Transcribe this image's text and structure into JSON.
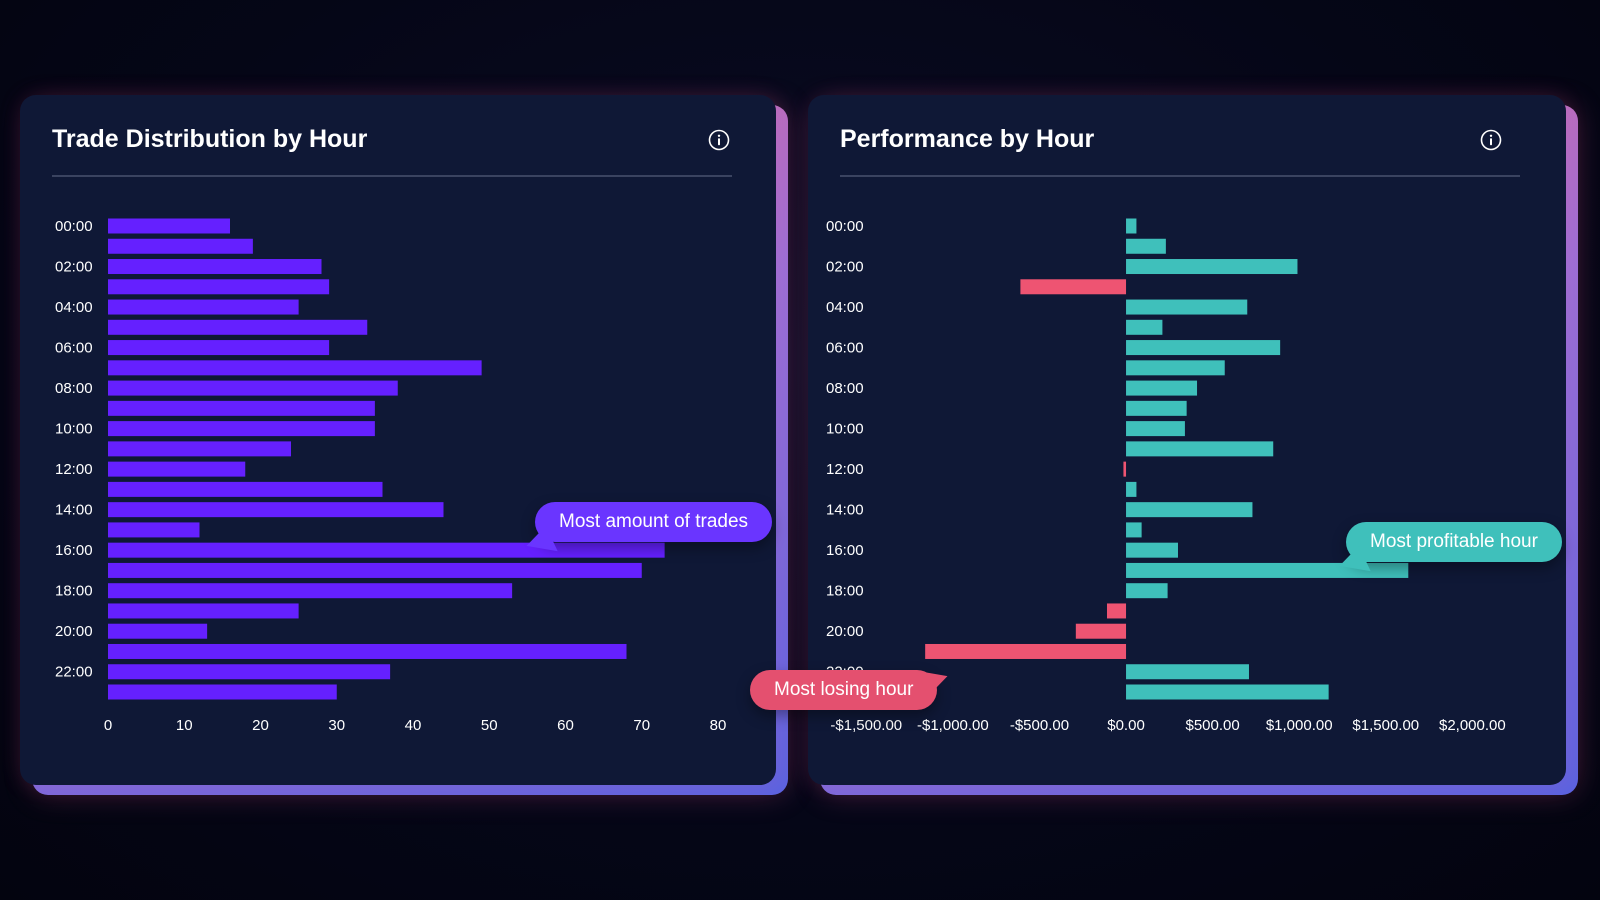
{
  "colors": {
    "trades_bar": "#6520ff",
    "profit_bar": "#3fc0bb",
    "loss_bar": "#ee5472",
    "callout_trades": "#6a35ff",
    "callout_profit": "#3fc0bb",
    "callout_loss": "#e4506f"
  },
  "panels": {
    "left": {
      "title": "Trade Distribution by Hour",
      "info_icon": "info-icon",
      "callout": "Most amount of trades"
    },
    "right": {
      "title": "Performance by Hour",
      "info_icon": "info-icon",
      "callout_profit": "Most profitable hour",
      "callout_loss": "Most losing hour"
    }
  },
  "chart_data": [
    {
      "type": "bar",
      "orientation": "horizontal",
      "title": "Trade Distribution by Hour",
      "categories": [
        "00:00",
        "01:00",
        "02:00",
        "03:00",
        "04:00",
        "05:00",
        "06:00",
        "07:00",
        "08:00",
        "09:00",
        "10:00",
        "11:00",
        "12:00",
        "13:00",
        "14:00",
        "15:00",
        "16:00",
        "17:00",
        "18:00",
        "19:00",
        "20:00",
        "21:00",
        "22:00",
        "23:00"
      ],
      "category_tick_labels": [
        "00:00",
        "",
        "02:00",
        "",
        "04:00",
        "",
        "06:00",
        "",
        "08:00",
        "",
        "10:00",
        "",
        "12:00",
        "",
        "14:00",
        "",
        "16:00",
        "",
        "18:00",
        "",
        "20:00",
        "",
        "22:00",
        ""
      ],
      "values": [
        16,
        19,
        28,
        29,
        25,
        34,
        29,
        49,
        38,
        35,
        35,
        24,
        18,
        36,
        44,
        12,
        73,
        70,
        53,
        25,
        13,
        68,
        37,
        30
      ],
      "xlim": [
        0,
        80
      ],
      "x_ticks": [
        0,
        10,
        20,
        30,
        40,
        50,
        60,
        70,
        80
      ],
      "x_tick_labels": [
        "0",
        "10",
        "20",
        "30",
        "40",
        "50",
        "60",
        "70",
        "80"
      ],
      "grid": false,
      "annotations": [
        {
          "text": "Most amount of trades",
          "category": "16:00"
        }
      ]
    },
    {
      "type": "bar",
      "orientation": "horizontal",
      "title": "Performance by Hour",
      "categories": [
        "00:00",
        "01:00",
        "02:00",
        "03:00",
        "04:00",
        "05:00",
        "06:00",
        "07:00",
        "08:00",
        "09:00",
        "10:00",
        "11:00",
        "12:00",
        "13:00",
        "14:00",
        "15:00",
        "16:00",
        "17:00",
        "18:00",
        "19:00",
        "20:00",
        "21:00",
        "22:00",
        "23:00"
      ],
      "category_tick_labels": [
        "00:00",
        "",
        "02:00",
        "",
        "04:00",
        "",
        "06:00",
        "",
        "08:00",
        "",
        "10:00",
        "",
        "12:00",
        "",
        "14:00",
        "",
        "16:00",
        "",
        "18:00",
        "",
        "20:00",
        "",
        "22:00",
        ""
      ],
      "values": [
        60,
        230,
        990,
        -610,
        700,
        210,
        890,
        570,
        410,
        350,
        340,
        850,
        -15,
        60,
        730,
        90,
        300,
        1630,
        240,
        -110,
        -290,
        -1160,
        710,
        1170
      ],
      "xlim": [
        -1750,
        2200
      ],
      "x_ticks": [
        -1500,
        -1000,
        -500,
        0,
        500,
        1000,
        1500,
        2000
      ],
      "x_tick_labels": [
        "-$1,500.00",
        "-$1,000.00",
        "-$500.00",
        "$0.00",
        "$500.00",
        "$1,000.00",
        "$1,500.00",
        "$2,000.00"
      ],
      "grid": false,
      "annotations": [
        {
          "text": "Most profitable hour",
          "category": "17:00"
        },
        {
          "text": "Most losing hour",
          "category": "21:00"
        }
      ]
    }
  ]
}
